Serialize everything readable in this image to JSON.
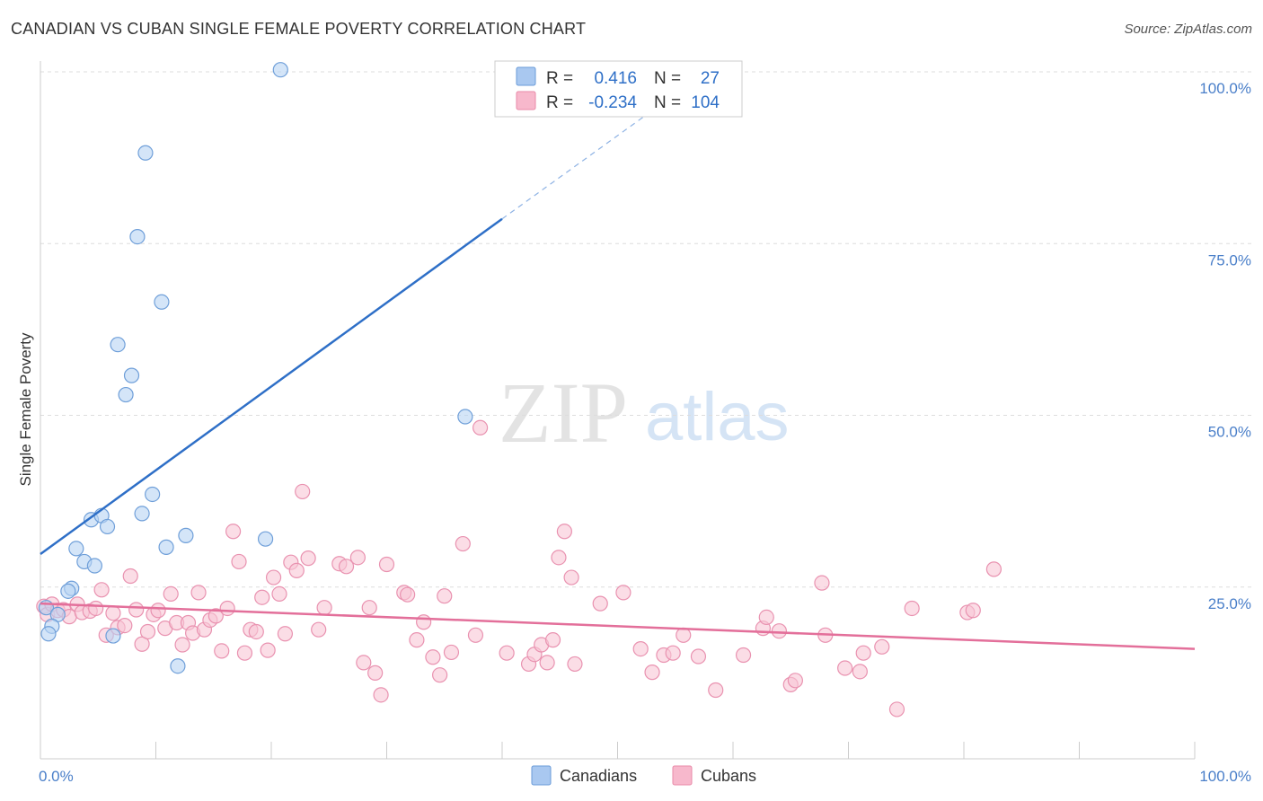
{
  "header": {
    "title": "CANADIAN VS CUBAN SINGLE FEMALE POVERTY CORRELATION CHART",
    "source": "Source: ZipAtlas.com"
  },
  "watermark": {
    "zip": "ZIP",
    "atlas": "atlas"
  },
  "legend": {
    "rows": [
      {
        "r_label": "R =",
        "r_value": "0.416",
        "n_label": "N =",
        "n_value": "27",
        "color": "#a9c8f0",
        "stroke": "#6a9bd8"
      },
      {
        "r_label": "R =",
        "r_value": "-0.234",
        "n_label": "N =",
        "n_value": "104",
        "color": "#f7b8cc",
        "stroke": "#e88aa8"
      }
    ]
  },
  "bottom_legend": {
    "items": [
      {
        "label": "Canadians",
        "color": "#a9c8f0",
        "stroke": "#6a9bd8"
      },
      {
        "label": "Cubans",
        "color": "#f7b8cc",
        "stroke": "#e88aa8"
      }
    ]
  },
  "colors": {
    "canadian_fill": "#b8d3f3",
    "canadian_stroke": "#6f9fd9",
    "cuban_fill": "#f9c6d6",
    "cuban_stroke": "#e992b0",
    "canadian_line": "#2e6fc7",
    "cuban_line": "#e36f9a",
    "grid": "#dddddd"
  },
  "chart_data": {
    "type": "scatter",
    "title": "CANADIAN VS CUBAN SINGLE FEMALE POVERTY CORRELATION CHART",
    "xlabel": "",
    "ylabel": "Single Female Poverty",
    "xlim": [
      0,
      100
    ],
    "ylim": [
      0,
      100
    ],
    "x_tick_labels": [
      "0.0%",
      "100.0%"
    ],
    "y_ticks": [
      25,
      50,
      75,
      100
    ],
    "y_tick_labels": [
      "25.0%",
      "50.0%",
      "75.0%",
      "100.0%"
    ],
    "grid": true,
    "series": [
      {
        "name": "Canadians",
        "r": 0.416,
        "n": 27,
        "points": [
          [
            20.8,
            100.3
          ],
          [
            9.1,
            88.2
          ],
          [
            8.4,
            76.0
          ],
          [
            10.5,
            66.5
          ],
          [
            6.7,
            60.3
          ],
          [
            7.9,
            55.8
          ],
          [
            7.4,
            53.0
          ],
          [
            36.8,
            49.8
          ],
          [
            9.7,
            38.5
          ],
          [
            8.8,
            35.7
          ],
          [
            4.4,
            34.8
          ],
          [
            5.3,
            35.4
          ],
          [
            5.8,
            33.8
          ],
          [
            12.6,
            32.5
          ],
          [
            19.5,
            32.0
          ],
          [
            3.1,
            30.6
          ],
          [
            10.9,
            30.8
          ],
          [
            3.8,
            28.7
          ],
          [
            4.7,
            28.1
          ],
          [
            2.7,
            24.8
          ],
          [
            2.4,
            24.4
          ],
          [
            0.5,
            22.0
          ],
          [
            1.5,
            21.0
          ],
          [
            1.0,
            19.3
          ],
          [
            0.7,
            18.2
          ],
          [
            6.3,
            17.9
          ],
          [
            11.9,
            13.5
          ]
        ],
        "trend": {
          "x0": 0,
          "y0": 29.8,
          "x1": 40,
          "y1": 78.6,
          "dash_to_x": 57,
          "dash_to_y": 99.2
        }
      },
      {
        "name": "Cubans",
        "r": -0.234,
        "n": 104,
        "points": [
          [
            0.3,
            22.2
          ],
          [
            0.6,
            21.0
          ],
          [
            1.0,
            22.5
          ],
          [
            1.5,
            21.6
          ],
          [
            2.0,
            21.7
          ],
          [
            2.5,
            20.7
          ],
          [
            3.2,
            22.5
          ],
          [
            3.6,
            21.3
          ],
          [
            4.3,
            21.5
          ],
          [
            4.8,
            21.9
          ],
          [
            5.3,
            24.6
          ],
          [
            5.7,
            18.0
          ],
          [
            6.3,
            21.2
          ],
          [
            6.7,
            19.1
          ],
          [
            7.3,
            19.4
          ],
          [
            7.8,
            26.6
          ],
          [
            8.3,
            21.7
          ],
          [
            8.8,
            16.7
          ],
          [
            9.3,
            18.5
          ],
          [
            9.8,
            21.0
          ],
          [
            10.2,
            21.6
          ],
          [
            10.8,
            19.0
          ],
          [
            11.3,
            24.0
          ],
          [
            11.8,
            19.8
          ],
          [
            12.3,
            16.6
          ],
          [
            12.8,
            19.8
          ],
          [
            13.2,
            18.3
          ],
          [
            13.7,
            24.2
          ],
          [
            14.2,
            18.8
          ],
          [
            14.7,
            20.2
          ],
          [
            15.2,
            20.8
          ],
          [
            15.7,
            15.7
          ],
          [
            16.2,
            21.9
          ],
          [
            16.7,
            33.1
          ],
          [
            17.2,
            28.7
          ],
          [
            17.7,
            15.4
          ],
          [
            18.2,
            18.8
          ],
          [
            18.7,
            18.5
          ],
          [
            19.2,
            23.5
          ],
          [
            19.7,
            15.8
          ],
          [
            20.2,
            26.4
          ],
          [
            20.7,
            24.0
          ],
          [
            21.2,
            18.2
          ],
          [
            21.7,
            28.6
          ],
          [
            22.2,
            27.4
          ],
          [
            22.7,
            38.9
          ],
          [
            23.2,
            29.2
          ],
          [
            24.1,
            18.8
          ],
          [
            24.6,
            22.0
          ],
          [
            25.9,
            28.4
          ],
          [
            26.5,
            28.0
          ],
          [
            27.5,
            29.3
          ],
          [
            28.0,
            14.0
          ],
          [
            28.5,
            22.0
          ],
          [
            29.0,
            12.5
          ],
          [
            29.5,
            9.3
          ],
          [
            30.0,
            28.3
          ],
          [
            31.5,
            24.2
          ],
          [
            31.8,
            23.9
          ],
          [
            32.6,
            17.3
          ],
          [
            33.2,
            19.9
          ],
          [
            34.0,
            14.8
          ],
          [
            34.6,
            12.2
          ],
          [
            35.0,
            23.7
          ],
          [
            35.6,
            15.5
          ],
          [
            36.6,
            31.3
          ],
          [
            37.7,
            18.0
          ],
          [
            38.1,
            48.2
          ],
          [
            40.4,
            15.4
          ],
          [
            42.3,
            13.8
          ],
          [
            42.8,
            15.2
          ],
          [
            43.4,
            16.6
          ],
          [
            43.9,
            14.0
          ],
          [
            44.4,
            17.3
          ],
          [
            44.9,
            29.3
          ],
          [
            45.4,
            33.1
          ],
          [
            46.0,
            26.4
          ],
          [
            46.3,
            13.8
          ],
          [
            48.5,
            22.6
          ],
          [
            50.5,
            24.2
          ],
          [
            52.0,
            16.0
          ],
          [
            53.0,
            12.6
          ],
          [
            54.0,
            15.1
          ],
          [
            54.8,
            15.4
          ],
          [
            55.7,
            18.0
          ],
          [
            57.0,
            14.9
          ],
          [
            58.5,
            10.0
          ],
          [
            60.9,
            15.1
          ],
          [
            62.6,
            19.0
          ],
          [
            62.9,
            20.6
          ],
          [
            64.0,
            18.6
          ],
          [
            65.0,
            10.8
          ],
          [
            65.4,
            11.4
          ],
          [
            67.7,
            25.6
          ],
          [
            68.0,
            18.0
          ],
          [
            69.7,
            13.2
          ],
          [
            71.0,
            12.7
          ],
          [
            71.3,
            15.4
          ],
          [
            72.9,
            16.3
          ],
          [
            74.2,
            7.2
          ],
          [
            75.5,
            21.9
          ],
          [
            80.3,
            21.3
          ],
          [
            80.8,
            21.6
          ],
          [
            82.6,
            27.6
          ]
        ],
        "trend": {
          "x0": 0,
          "y0": 22.6,
          "x1": 100,
          "y1": 16.0
        }
      }
    ]
  }
}
